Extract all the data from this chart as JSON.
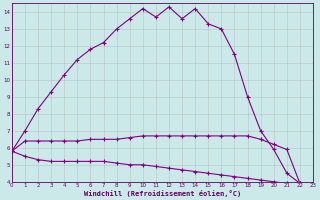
{
  "xlabel": "Windchill (Refroidissement éolien,°C)",
  "x": [
    0,
    1,
    2,
    3,
    4,
    5,
    6,
    7,
    8,
    9,
    10,
    11,
    12,
    13,
    14,
    15,
    16,
    17,
    18,
    19,
    20,
    21,
    22,
    23
  ],
  "line1": [
    5.8,
    7.0,
    8.3,
    9.3,
    10.3,
    11.2,
    11.8,
    12.2,
    13.0,
    13.6,
    14.2,
    13.7,
    14.3,
    13.6,
    14.2,
    13.3,
    13.0,
    11.5,
    9.0,
    7.0,
    5.9,
    4.5,
    3.9,
    3.7
  ],
  "line2": [
    5.8,
    6.4,
    6.4,
    6.4,
    6.4,
    6.4,
    6.5,
    6.5,
    6.5,
    6.6,
    6.7,
    6.7,
    6.7,
    6.7,
    6.7,
    6.7,
    6.7,
    6.7,
    6.7,
    6.5,
    6.2,
    5.9,
    3.9,
    3.7
  ],
  "line3": [
    5.8,
    5.5,
    5.3,
    5.2,
    5.2,
    5.2,
    5.2,
    5.2,
    5.1,
    5.0,
    5.0,
    4.9,
    4.8,
    4.7,
    4.6,
    4.5,
    4.4,
    4.3,
    4.2,
    4.1,
    4.0,
    3.9,
    3.9,
    3.7
  ],
  "line_color": "#800080",
  "bg_color": "#cce9e9",
  "grid_color": "#aaaaaa",
  "axis_label_color": "#600060",
  "ylim": [
    4,
    14.5
  ],
  "xlim": [
    0,
    23
  ]
}
